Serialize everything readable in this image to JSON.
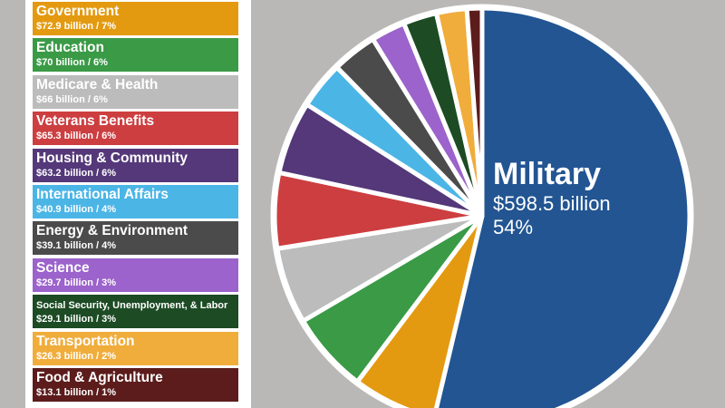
{
  "chart_data": {
    "type": "pie",
    "slices": [
      {
        "name": "Military",
        "amount": "$598.5 billion",
        "value": 598.5,
        "percent": "54%",
        "color": "#225592"
      },
      {
        "name": "Government",
        "amount": "$72.9 billion / 7%",
        "value": 72.9,
        "color": "#e49a10"
      },
      {
        "name": "Education",
        "amount": "$70 billion / 6%",
        "value": 70,
        "color": "#3a9a46"
      },
      {
        "name": "Medicare & Health",
        "amount": "$66 billion / 6%",
        "value": 66,
        "color": "#bcbcbc"
      },
      {
        "name": "Veterans Benefits",
        "amount": "$65.3 billion / 6%",
        "value": 65.3,
        "color": "#cd3e40"
      },
      {
        "name": "Housing & Community",
        "amount": "$63.2 billion / 6%",
        "value": 63.2,
        "color": "#543879"
      },
      {
        "name": "International Affairs",
        "amount": "$40.9 billion / 4%",
        "value": 40.9,
        "color": "#4bb5e6"
      },
      {
        "name": "Energy & Environment",
        "amount": "$39.1 billion / 4%",
        "value": 39.1,
        "color": "#4b4b4b"
      },
      {
        "name": "Science",
        "amount": "$29.7 billion / 3%",
        "value": 29.7,
        "color": "#9b63cb"
      },
      {
        "name": "Social Security, Unemployment, & Labor",
        "amount": "$29.1 billion / 3%",
        "value": 29.1,
        "color": "#1c4b24"
      },
      {
        "name": "Transportation",
        "amount": "$26.3 billion / 2%",
        "value": 26.3,
        "color": "#f0ad3c"
      },
      {
        "name": "Food & Agriculture",
        "amount": "$13.1 billion / 1%",
        "value": 13.1,
        "color": "#5c1c1c"
      }
    ]
  }
}
